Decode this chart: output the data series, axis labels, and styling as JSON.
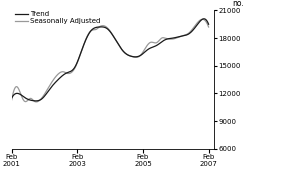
{
  "title": "",
  "ylabel": "no.",
  "ylim": [
    6000,
    21000
  ],
  "yticks": [
    6000,
    9000,
    12000,
    15000,
    18000,
    21000
  ],
  "ytick_labels": [
    "6000",
    "9000",
    "12000",
    "15000",
    "18000",
    "21000"
  ],
  "xlim_start": 2001.083,
  "xlim_end": 2007.25,
  "xtick_positions": [
    2001.083,
    2003.083,
    2005.083,
    2007.083
  ],
  "xtick_labels": [
    "Feb\n2001",
    "Feb\n2003",
    "Feb\n2005",
    "Feb\n2007"
  ],
  "legend_entries": [
    "Trend",
    "Seasonally Adjusted"
  ],
  "trend_color": "#1a1a1a",
  "seasonal_color": "#999999",
  "background_color": "#ffffff",
  "trend_linewidth": 0.9,
  "seasonal_linewidth": 0.9
}
